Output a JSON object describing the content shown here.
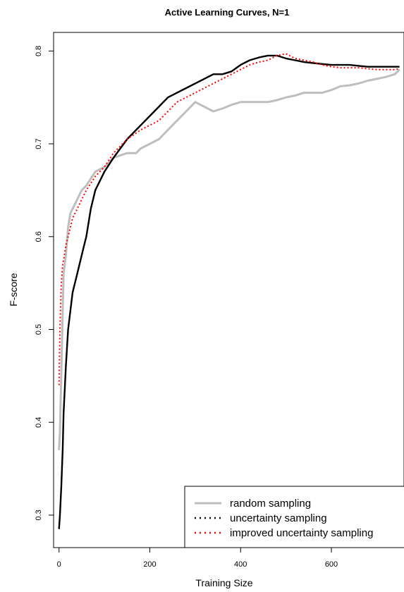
{
  "chart_data": {
    "type": "line",
    "title": "Active Learning Curves, N=1",
    "xlabel": "Training Size",
    "ylabel": "F-score",
    "xlim": [
      -12,
      760
    ],
    "ylim": [
      0.265,
      0.82
    ],
    "x_ticks": [
      0,
      200,
      400,
      600
    ],
    "y_ticks": [
      0.3,
      0.4,
      0.5,
      0.6,
      0.7,
      0.8
    ],
    "x_tick_labels": [
      "0",
      "200",
      "400",
      "600"
    ],
    "y_tick_labels": [
      "0.3",
      "0.4",
      "0.5",
      "0.6",
      "0.7",
      "0.8"
    ],
    "grid": false,
    "legend_position": "bottom-right",
    "series": [
      {
        "name": "random sampling",
        "color": "#bebebe",
        "style": "solid",
        "x": [
          0,
          2,
          5,
          8,
          10,
          15,
          20,
          25,
          30,
          40,
          50,
          60,
          80,
          100,
          120,
          150,
          170,
          180,
          200,
          220,
          240,
          260,
          280,
          300,
          320,
          340,
          360,
          380,
          400,
          420,
          440,
          460,
          480,
          500,
          520,
          540,
          560,
          580,
          600,
          620,
          640,
          660,
          680,
          700,
          720,
          740,
          750
        ],
        "y": [
          0.37,
          0.39,
          0.45,
          0.52,
          0.56,
          0.58,
          0.61,
          0.625,
          0.63,
          0.64,
          0.65,
          0.655,
          0.67,
          0.675,
          0.685,
          0.69,
          0.69,
          0.695,
          0.7,
          0.705,
          0.715,
          0.725,
          0.735,
          0.745,
          0.74,
          0.735,
          0.738,
          0.742,
          0.745,
          0.745,
          0.745,
          0.745,
          0.747,
          0.75,
          0.752,
          0.755,
          0.755,
          0.755,
          0.758,
          0.762,
          0.763,
          0.765,
          0.768,
          0.77,
          0.772,
          0.775,
          0.78
        ]
      },
      {
        "name": "uncertainty sampling",
        "color": "#000000",
        "style": "dotted",
        "x": [
          0,
          2,
          5,
          8,
          10,
          15,
          20,
          25,
          30,
          35,
          40,
          45,
          50,
          55,
          60,
          70,
          80,
          100,
          120,
          150,
          180,
          200,
          220,
          240,
          260,
          280,
          300,
          320,
          340,
          360,
          380,
          400,
          420,
          440,
          460,
          480,
          500,
          520,
          540,
          560,
          580,
          600,
          620,
          640,
          660,
          680,
          700,
          720,
          740,
          750
        ],
        "y": [
          0.285,
          0.3,
          0.33,
          0.37,
          0.41,
          0.46,
          0.5,
          0.52,
          0.54,
          0.55,
          0.56,
          0.57,
          0.58,
          0.59,
          0.6,
          0.63,
          0.65,
          0.67,
          0.685,
          0.705,
          0.72,
          0.73,
          0.74,
          0.75,
          0.755,
          0.76,
          0.765,
          0.77,
          0.775,
          0.775,
          0.778,
          0.785,
          0.79,
          0.793,
          0.795,
          0.795,
          0.792,
          0.79,
          0.788,
          0.787,
          0.786,
          0.785,
          0.785,
          0.785,
          0.784,
          0.783,
          0.783,
          0.783,
          0.783,
          0.783
        ]
      },
      {
        "name": "improved uncertainty sampling",
        "color": "#ff0000",
        "style": "dotted",
        "x": [
          0,
          2,
          5,
          8,
          10,
          15,
          20,
          25,
          30,
          40,
          50,
          60,
          80,
          100,
          120,
          150,
          180,
          200,
          220,
          240,
          260,
          280,
          300,
          320,
          340,
          360,
          380,
          400,
          420,
          440,
          460,
          480,
          500,
          520,
          540,
          560,
          580,
          600,
          620,
          640,
          660,
          680,
          700,
          720,
          740,
          750
        ],
        "y": [
          0.44,
          0.5,
          0.55,
          0.57,
          0.575,
          0.59,
          0.6,
          0.61,
          0.62,
          0.63,
          0.64,
          0.65,
          0.665,
          0.675,
          0.69,
          0.705,
          0.715,
          0.72,
          0.725,
          0.735,
          0.745,
          0.75,
          0.755,
          0.76,
          0.765,
          0.77,
          0.775,
          0.78,
          0.785,
          0.788,
          0.79,
          0.795,
          0.797,
          0.792,
          0.79,
          0.788,
          0.785,
          0.783,
          0.782,
          0.782,
          0.782,
          0.781,
          0.78,
          0.78,
          0.78,
          0.781
        ]
      }
    ]
  }
}
